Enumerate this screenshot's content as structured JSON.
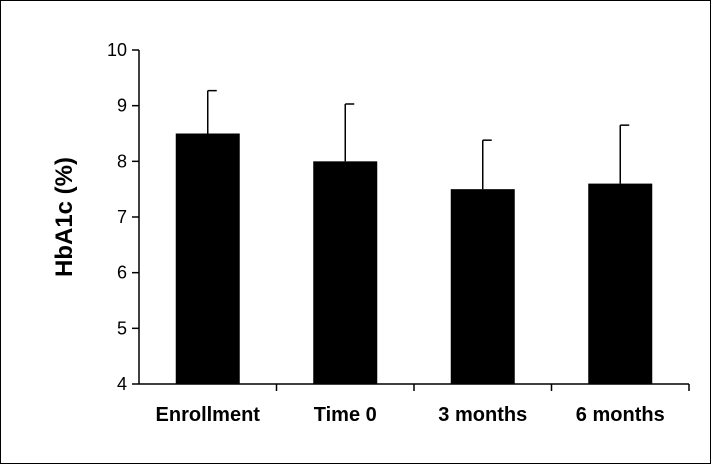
{
  "chart_data": {
    "type": "bar",
    "title": "",
    "xlabel": "",
    "ylabel": "HbA1c (%)",
    "categories": [
      "Enrollment",
      "Time 0",
      "3 months",
      "6 months"
    ],
    "values": [
      8.5,
      8.0,
      7.5,
      7.6
    ],
    "error_upper": [
      9.27,
      9.03,
      8.38,
      8.65
    ],
    "ylim": [
      4,
      10
    ],
    "yticks": [
      "4",
      "5",
      "6",
      "7",
      "8",
      "9",
      "10"
    ],
    "grid": false,
    "legend": "none",
    "bar_color": "#000000"
  }
}
